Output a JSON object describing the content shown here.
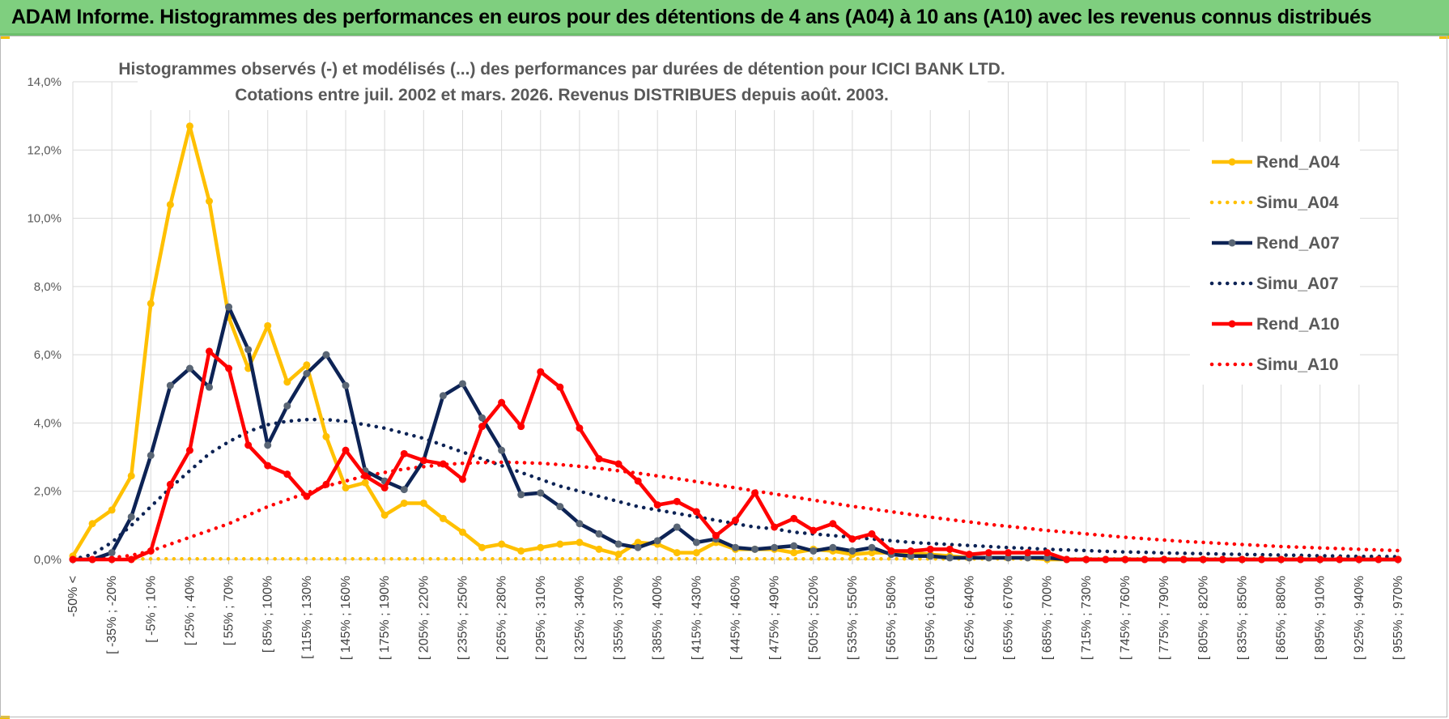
{
  "header": {
    "title": "ADAM Informe. Histogrammes des performances en euros pour des détentions de 4 ans (A04) à 10 ans (A10) avec les revenus connus distribués"
  },
  "colors": {
    "header_bg": "#7fcf7f",
    "a04": "#ffc000",
    "a07": "#0d2355",
    "a07_marker": "#5a6675",
    "a10": "#ff0000",
    "grid": "#d9d9d9"
  },
  "chart_data": {
    "type": "line",
    "title_line1": "Histogrammes observés (-) et modélisés (...) des performances par durées de détention pour ICICI BANK LTD.",
    "title_line2": "Cotations entre juil. 2002 et mars. 2026. Revenus DISTRIBUES depuis août. 2003.",
    "y_ticks": [
      "0,0%",
      "2,0%",
      "4,0%",
      "6,0%",
      "8,0%",
      "10,0%",
      "12,0%",
      "14,0%"
    ],
    "ylim": [
      0,
      14
    ],
    "n_points": 69,
    "x_tick_labels": [
      "-50% <",
      "[ -35% ; -20%",
      "[ -5% ; 10%",
      "[ 25% ; 40%",
      "[ 55% ; 70%",
      "[ 85% ; 100%",
      "[ 115% ; 130%",
      "[ 145% ; 160%",
      "[ 175% ; 190%",
      "[ 205% ; 220%",
      "[ 235% ; 250%",
      "[ 265% ; 280%",
      "[ 295% ; 310%",
      "[ 325% ; 340%",
      "[ 355% ; 370%",
      "[ 385% ; 400%",
      "[ 415% ; 430%",
      "[ 445% ; 460%",
      "[ 475% ; 490%",
      "[ 505% ; 520%",
      "[ 535% ; 550%",
      "[ 565% ; 580%",
      "[ 595% ; 610%",
      "[ 625% ; 640%",
      "[ 655% ; 670%",
      "[ 685% ; 700%",
      "[ 715% ; 730%",
      "[ 745% ; 760%",
      "[ 775% ; 790%",
      "[ 805% ; 820%",
      "[ 835% ; 850%",
      "[ 865% ; 880%",
      "[ 895% ; 910%",
      "[ 925% ; 940%",
      "[ 955% ; 970%"
    ],
    "legend_position": "right",
    "series": [
      {
        "name": "Rend_A04",
        "style": "solid",
        "values": [
          0.1,
          1.05,
          1.45,
          2.45,
          7.5,
          10.4,
          12.7,
          10.5,
          7.1,
          5.6,
          6.85,
          5.2,
          5.7,
          3.6,
          2.1,
          2.25,
          1.3,
          1.65,
          1.65,
          1.2,
          0.8,
          0.35,
          0.45,
          0.25,
          0.35,
          0.45,
          0.5,
          0.3,
          0.15,
          0.5,
          0.45,
          0.2,
          0.2,
          0.5,
          0.3,
          0.3,
          0.3,
          0.2,
          0.3,
          0.25,
          0.15,
          0.2,
          0.2,
          0.2,
          0.15,
          0.1,
          0.05,
          0.05,
          0.05,
          0.05,
          0.0,
          0.0,
          0.0,
          0.0,
          0.0,
          0.0,
          0.0,
          0.0,
          0.0,
          0.0,
          0.0,
          0.0,
          0.0,
          0.0,
          0.0,
          0.0,
          0.0,
          0.0,
          0.0
        ]
      },
      {
        "name": "Simu_A04",
        "style": "dotted",
        "values": [
          0.02,
          0.02,
          0.02,
          0.02,
          0.02,
          0.02,
          0.02,
          0.02,
          0.02,
          0.02,
          0.02,
          0.02,
          0.02,
          0.02,
          0.02,
          0.02,
          0.02,
          0.02,
          0.02,
          0.02,
          0.02,
          0.02,
          0.02,
          0.02,
          0.02,
          0.02,
          0.02,
          0.02,
          0.02,
          0.02,
          0.02,
          0.02,
          0.02,
          0.02,
          0.02,
          0.02,
          0.02,
          0.02,
          0.02,
          0.02,
          0.02,
          0.02,
          0.02,
          0.02,
          0.02,
          0.02,
          0.02,
          0.02,
          0.02,
          0.02,
          0.02,
          0.02,
          0.02,
          0.02,
          0.02,
          0.02,
          0.02,
          0.02,
          0.02,
          0.02,
          0.02,
          0.02,
          0.02,
          0.02,
          0.02,
          0.02,
          0.02,
          0.02,
          0.02
        ]
      },
      {
        "name": "Rend_A07",
        "style": "solid",
        "values": [
          0.0,
          0.0,
          0.2,
          1.25,
          3.05,
          5.1,
          5.6,
          5.05,
          7.4,
          6.15,
          3.35,
          4.5,
          5.45,
          6.0,
          5.1,
          2.6,
          2.3,
          2.05,
          2.9,
          4.8,
          5.15,
          4.15,
          3.2,
          1.9,
          1.95,
          1.55,
          1.05,
          0.75,
          0.45,
          0.35,
          0.55,
          0.95,
          0.5,
          0.6,
          0.35,
          0.3,
          0.35,
          0.4,
          0.25,
          0.35,
          0.25,
          0.35,
          0.15,
          0.1,
          0.1,
          0.05,
          0.05,
          0.05,
          0.05,
          0.05,
          0.05,
          0.0,
          0.0,
          0.0,
          0.0,
          0.0,
          0.0,
          0.0,
          0.0,
          0.0,
          0.0,
          0.0,
          0.0,
          0.0,
          0.0,
          0.0,
          0.0,
          0.0,
          0.0
        ]
      },
      {
        "name": "Simu_A07",
        "style": "dotted",
        "values": [
          0.0,
          0.15,
          0.5,
          1.0,
          1.55,
          2.1,
          2.6,
          3.1,
          3.45,
          3.75,
          3.95,
          4.05,
          4.1,
          4.1,
          4.05,
          3.95,
          3.85,
          3.7,
          3.55,
          3.35,
          3.15,
          2.95,
          2.75,
          2.55,
          2.35,
          2.15,
          2.0,
          1.85,
          1.7,
          1.55,
          1.45,
          1.35,
          1.25,
          1.15,
          1.05,
          0.95,
          0.9,
          0.8,
          0.75,
          0.7,
          0.65,
          0.6,
          0.55,
          0.5,
          0.47,
          0.44,
          0.41,
          0.38,
          0.35,
          0.33,
          0.3,
          0.28,
          0.26,
          0.24,
          0.22,
          0.21,
          0.19,
          0.18,
          0.17,
          0.16,
          0.15,
          0.14,
          0.13,
          0.12,
          0.11,
          0.1,
          0.09,
          0.09,
          0.08
        ]
      },
      {
        "name": "Rend_A10",
        "style": "solid",
        "values": [
          0.0,
          0.0,
          0.0,
          0.0,
          0.25,
          2.2,
          3.2,
          6.1,
          5.6,
          3.35,
          2.75,
          2.5,
          1.85,
          2.2,
          3.2,
          2.45,
          2.1,
          3.1,
          2.9,
          2.8,
          2.35,
          3.9,
          4.6,
          3.9,
          5.5,
          5.05,
          3.85,
          2.95,
          2.8,
          2.3,
          1.6,
          1.7,
          1.4,
          0.7,
          1.15,
          1.95,
          0.95,
          1.2,
          0.85,
          1.05,
          0.6,
          0.75,
          0.25,
          0.25,
          0.3,
          0.3,
          0.15,
          0.2,
          0.2,
          0.2,
          0.2,
          0.0,
          0.0,
          0.0,
          0.0,
          0.0,
          0.0,
          0.0,
          0.0,
          0.0,
          0.0,
          0.0,
          0.0,
          0.0,
          0.0,
          0.0,
          0.0,
          0.0,
          0.0
        ]
      },
      {
        "name": "Simu_A10",
        "style": "dotted",
        "values": [
          0.0,
          0.01,
          0.05,
          0.12,
          0.25,
          0.45,
          0.65,
          0.85,
          1.05,
          1.3,
          1.55,
          1.75,
          1.95,
          2.15,
          2.3,
          2.45,
          2.55,
          2.65,
          2.72,
          2.78,
          2.82,
          2.84,
          2.85,
          2.84,
          2.82,
          2.78,
          2.73,
          2.67,
          2.6,
          2.53,
          2.45,
          2.37,
          2.28,
          2.19,
          2.1,
          2.01,
          1.92,
          1.83,
          1.74,
          1.65,
          1.56,
          1.48,
          1.4,
          1.32,
          1.24,
          1.17,
          1.1,
          1.03,
          0.97,
          0.91,
          0.85,
          0.8,
          0.75,
          0.7,
          0.65,
          0.61,
          0.57,
          0.53,
          0.5,
          0.47,
          0.44,
          0.41,
          0.38,
          0.36,
          0.34,
          0.32,
          0.3,
          0.28,
          0.26
        ]
      }
    ]
  }
}
